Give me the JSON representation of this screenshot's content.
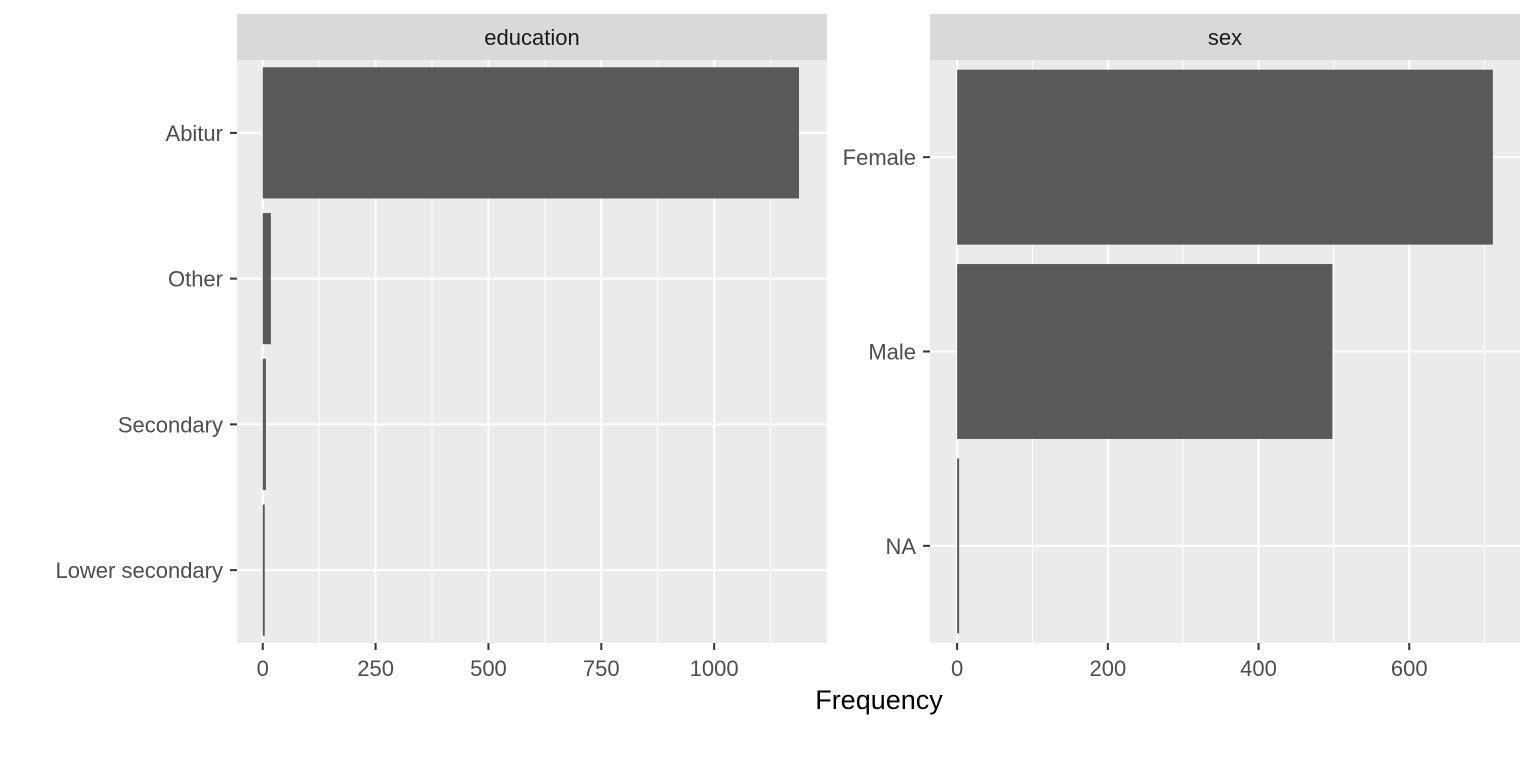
{
  "chart_data": [
    {
      "type": "bar",
      "orientation": "horizontal",
      "facet": "education",
      "categories": [
        "Abitur",
        "Other",
        "Secondary",
        "Lower secondary"
      ],
      "values": [
        1188,
        18,
        7,
        2
      ],
      "xticks": [
        "0",
        "250",
        "500",
        "750",
        "1000"
      ],
      "xlim": [
        -57,
        1250
      ],
      "grid": true
    },
    {
      "type": "bar",
      "orientation": "horizontal",
      "facet": "sex",
      "categories": [
        "Female",
        "Male",
        "NA"
      ],
      "values": [
        711,
        498,
        2
      ],
      "xticks": [
        "0",
        "200",
        "400",
        "600"
      ],
      "xlim": [
        -36,
        747
      ],
      "grid": true
    }
  ],
  "xlabel": "Frequency",
  "colors": {
    "bar": "#595959",
    "panel_bg": "#ebebeb",
    "strip_bg": "#d9d9d9",
    "grid": "#ffffff",
    "tick_text": "#4d4d4d",
    "strip_text": "#1a1a1a"
  }
}
